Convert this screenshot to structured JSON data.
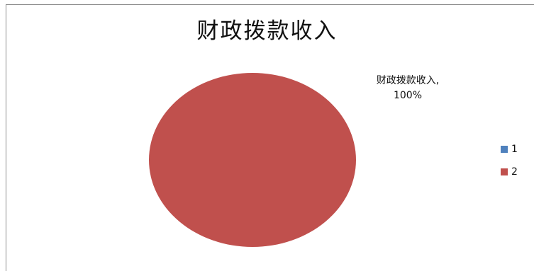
{
  "chart_data": {
    "type": "pie",
    "title": "财政拨款收入",
    "slices": [
      {
        "label": "1",
        "value": 0,
        "color": "#4f81bd"
      },
      {
        "label": "2",
        "value": 100,
        "color": "#c0504d"
      }
    ],
    "data_label": {
      "name": "财政拨款收入,",
      "percent": "100%"
    },
    "legend": {
      "placement": "right",
      "items": [
        "1",
        "2"
      ]
    }
  }
}
